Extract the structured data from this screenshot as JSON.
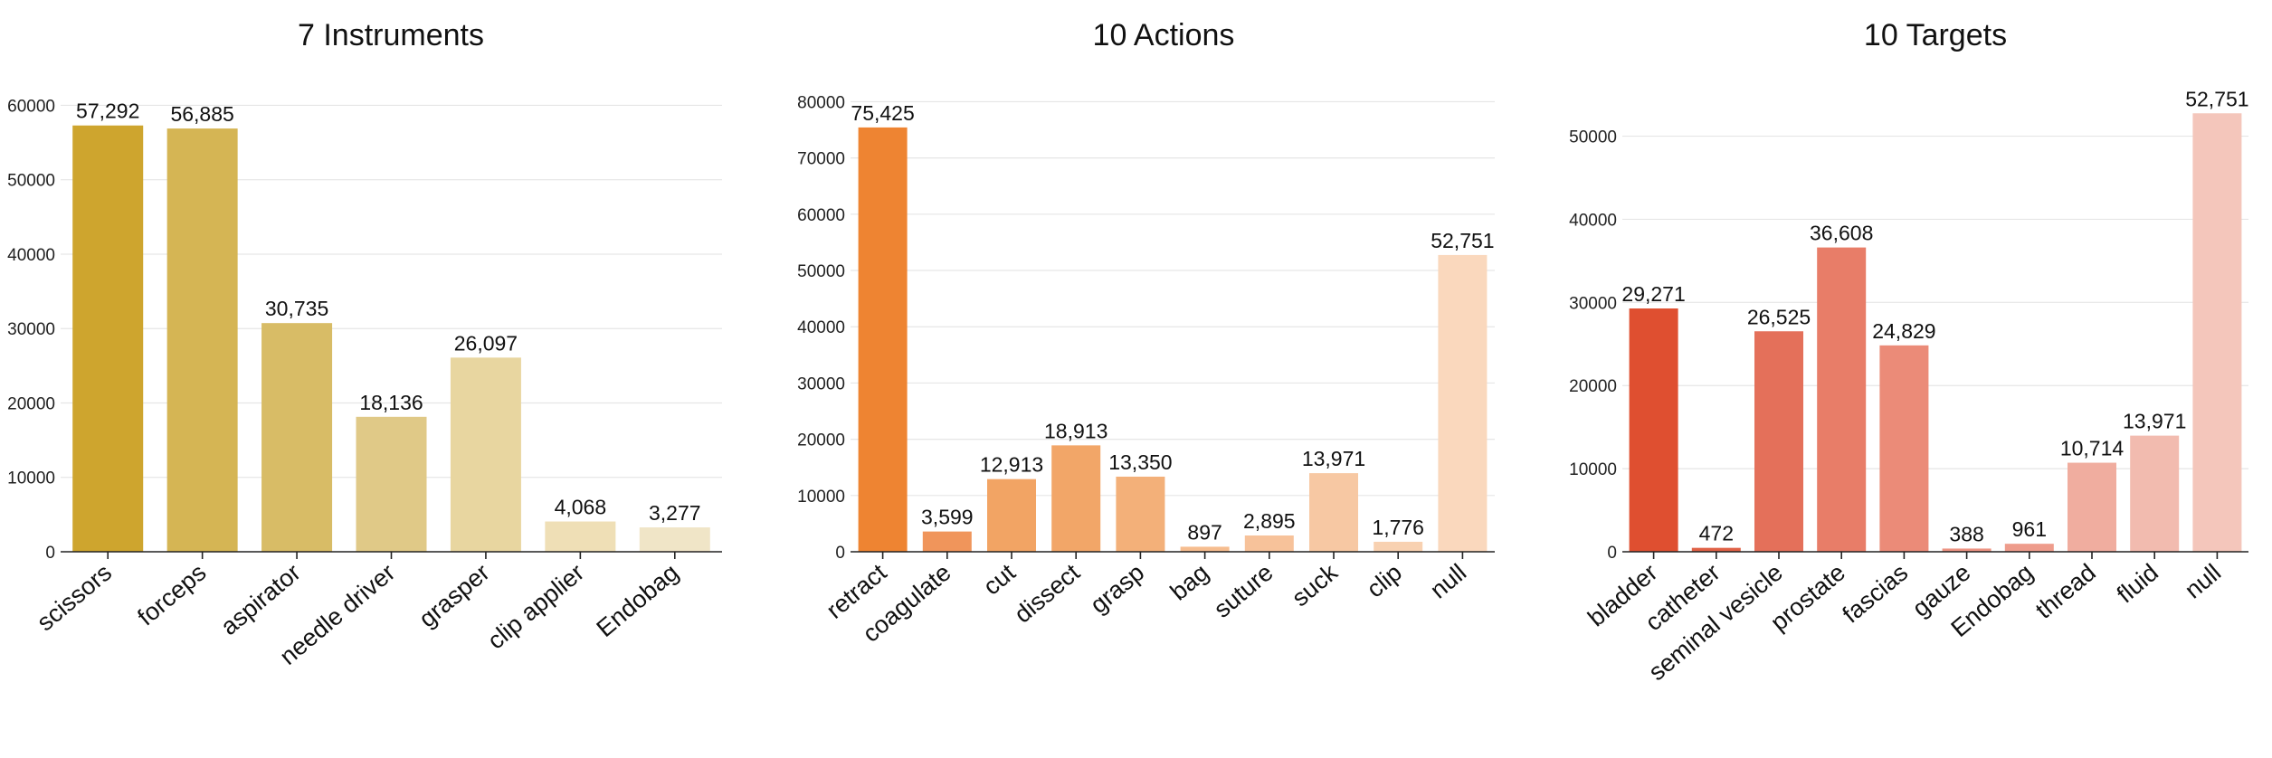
{
  "chart_data": [
    {
      "type": "bar",
      "title": "7 Instruments",
      "categories": [
        "scissors",
        "forceps",
        "aspirator",
        "needle driver",
        "grasper",
        "clip applier",
        "Endobag"
      ],
      "values": [
        57292,
        56885,
        30735,
        18136,
        26097,
        4068,
        3277
      ],
      "value_labels": [
        "57,292",
        "56,885",
        "30,735",
        "18,136",
        "26,097",
        "4,068",
        "3,277"
      ],
      "colors": [
        "#cea52e",
        "#d5b554",
        "#d8bc66",
        "#e0c987",
        "#e8d6a0",
        "#efdfb6",
        "#f0e5c7"
      ],
      "yticks": [
        0,
        10000,
        20000,
        30000,
        40000,
        50000,
        60000
      ],
      "ylim": [
        0,
        62000
      ],
      "xlabel": "",
      "ylabel": "",
      "grid": true,
      "legend": "none"
    },
    {
      "type": "bar",
      "title": "10 Actions",
      "categories": [
        "retract",
        "coagulate",
        "cut",
        "dissect",
        "grasp",
        "bag",
        "suture",
        "suck",
        "clip",
        "null"
      ],
      "values": [
        75425,
        3599,
        12913,
        18913,
        13350,
        897,
        2895,
        13971,
        1776,
        52751
      ],
      "value_labels": [
        "75,425",
        "3,599",
        "12,913",
        "18,913",
        "13,350",
        "897",
        "2,895",
        "13,971",
        "1,776",
        "52,751"
      ],
      "colors": [
        "#ee8432",
        "#f0955b",
        "#f2a464",
        "#f2a668",
        "#f3b079",
        "#f6bd8f",
        "#f7c29a",
        "#f7c8a3",
        "#f8d1b1",
        "#fad8bd"
      ],
      "yticks": [
        0,
        10000,
        20000,
        30000,
        40000,
        50000,
        60000,
        70000,
        80000
      ],
      "ylim": [
        0,
        82000
      ],
      "xlabel": "",
      "ylabel": "",
      "grid": true,
      "legend": "none"
    },
    {
      "type": "bar",
      "title": "10 Targets",
      "categories": [
        "bladder",
        "catheter",
        "seminal vesicle",
        "prostate",
        "fascias",
        "gauze",
        "Endobag",
        "thread",
        "fluid",
        "null"
      ],
      "values": [
        29271,
        472,
        26525,
        36608,
        24829,
        388,
        961,
        10714,
        13971,
        52751
      ],
      "value_labels": [
        "29,271",
        "472",
        "26,525",
        "36,608",
        "24,829",
        "388",
        "961",
        "10,714",
        "13,971",
        "52,751"
      ],
      "colors": [
        "#df4f30",
        "#e06146",
        "#e4705a",
        "#e87d68",
        "#eb8b78",
        "#ed9483",
        "#ee9c8c",
        "#f0ad9f",
        "#f2bbaf",
        "#f4c6bb"
      ],
      "yticks": [
        0,
        10000,
        20000,
        30000,
        40000,
        50000
      ],
      "ylim": [
        0,
        55500
      ],
      "xlabel": "",
      "ylabel": "",
      "grid": true,
      "legend": "none"
    }
  ]
}
